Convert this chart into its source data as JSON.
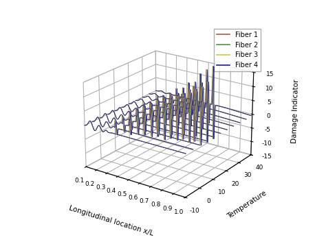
{
  "xlabel": "Longitudinal location x/L",
  "ylabel": "Temperature",
  "zlabel": "Damage Indicator",
  "x_ticks": [
    0.1,
    0.2,
    0.3,
    0.4,
    0.5,
    0.6,
    0.7,
    0.8,
    0.9,
    1.0
  ],
  "y_ticks": [
    -10,
    0,
    10,
    20,
    30,
    40
  ],
  "z_ticks": [
    -15,
    -10,
    -5,
    0,
    5,
    10,
    15
  ],
  "xlim": [
    0.1,
    1.0
  ],
  "ylim": [
    -10,
    40
  ],
  "zlim": [
    -15,
    15
  ],
  "fiber_colors": [
    "#b85050",
    "#509050",
    "#c8c840",
    "#1818a0"
  ],
  "fiber_labels": [
    "Fiber 1",
    "Fiber 2",
    "Fiber 3",
    "Fiber 4"
  ],
  "background_color": "#ffffff",
  "legend_fontsize": 7,
  "label_fontsize": 7.5,
  "tick_fontsize": 6.5,
  "elev": 22,
  "azim": -55
}
